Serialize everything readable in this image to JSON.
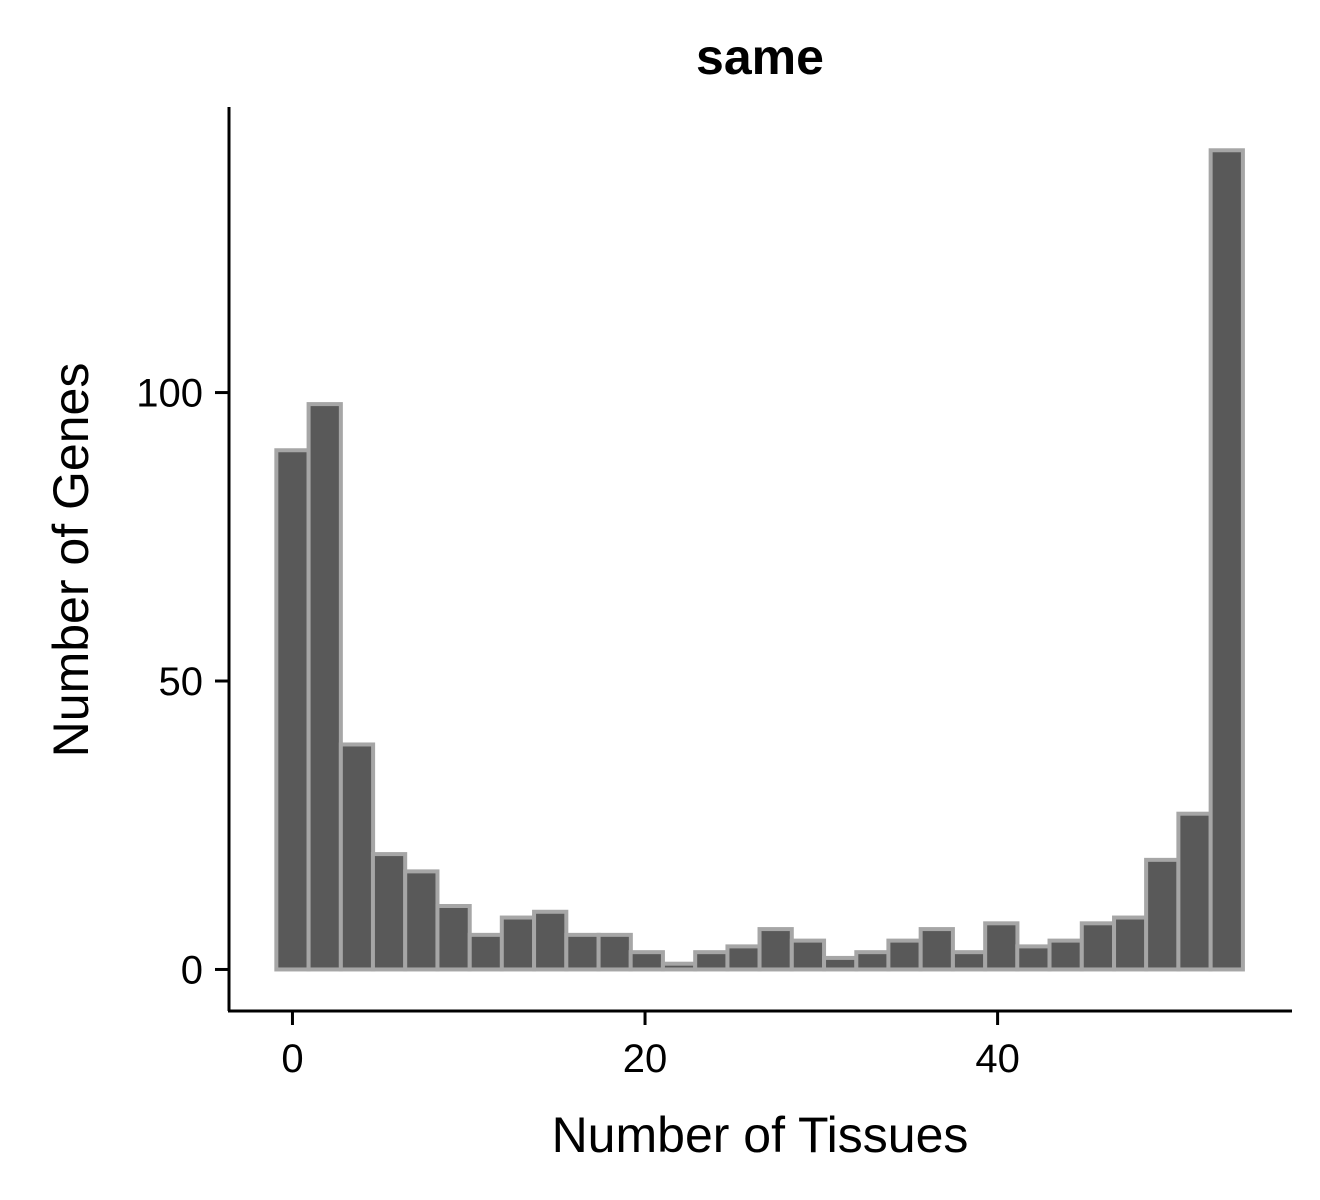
{
  "chart_data": {
    "type": "bar",
    "title": "same",
    "xlabel": "Number of Tissues",
    "ylabel": "Number of Genes",
    "x_ticks": [
      0,
      20,
      40
    ],
    "y_ticks": [
      0,
      50,
      100
    ],
    "xlim": [
      -3.6,
      56.7
    ],
    "ylim": [
      -7.2,
      149.5
    ],
    "bin_width": 1.83,
    "bins": [
      {
        "x": 0,
        "count": 90
      },
      {
        "x": 1.83,
        "count": 98
      },
      {
        "x": 3.66,
        "count": 39
      },
      {
        "x": 5.48,
        "count": 20
      },
      {
        "x": 7.31,
        "count": 17
      },
      {
        "x": 9.14,
        "count": 11
      },
      {
        "x": 10.97,
        "count": 6
      },
      {
        "x": 12.79,
        "count": 9
      },
      {
        "x": 14.62,
        "count": 10
      },
      {
        "x": 16.45,
        "count": 6
      },
      {
        "x": 18.28,
        "count": 6
      },
      {
        "x": 20.1,
        "count": 3
      },
      {
        "x": 21.93,
        "count": 1
      },
      {
        "x": 23.76,
        "count": 3
      },
      {
        "x": 25.59,
        "count": 4
      },
      {
        "x": 27.41,
        "count": 7
      },
      {
        "x": 29.24,
        "count": 5
      },
      {
        "x": 31.07,
        "count": 2
      },
      {
        "x": 32.9,
        "count": 3
      },
      {
        "x": 34.72,
        "count": 5
      },
      {
        "x": 36.55,
        "count": 7
      },
      {
        "x": 38.38,
        "count": 3
      },
      {
        "x": 40.21,
        "count": 8
      },
      {
        "x": 42.03,
        "count": 4
      },
      {
        "x": 43.86,
        "count": 5
      },
      {
        "x": 45.69,
        "count": 8
      },
      {
        "x": 47.52,
        "count": 9
      },
      {
        "x": 49.34,
        "count": 19
      },
      {
        "x": 51.17,
        "count": 27
      },
      {
        "x": 53,
        "count": 142
      }
    ],
    "bar_fill": "#595959",
    "bar_stroke": "#a6a6a6",
    "grid": false,
    "legend": "none"
  }
}
